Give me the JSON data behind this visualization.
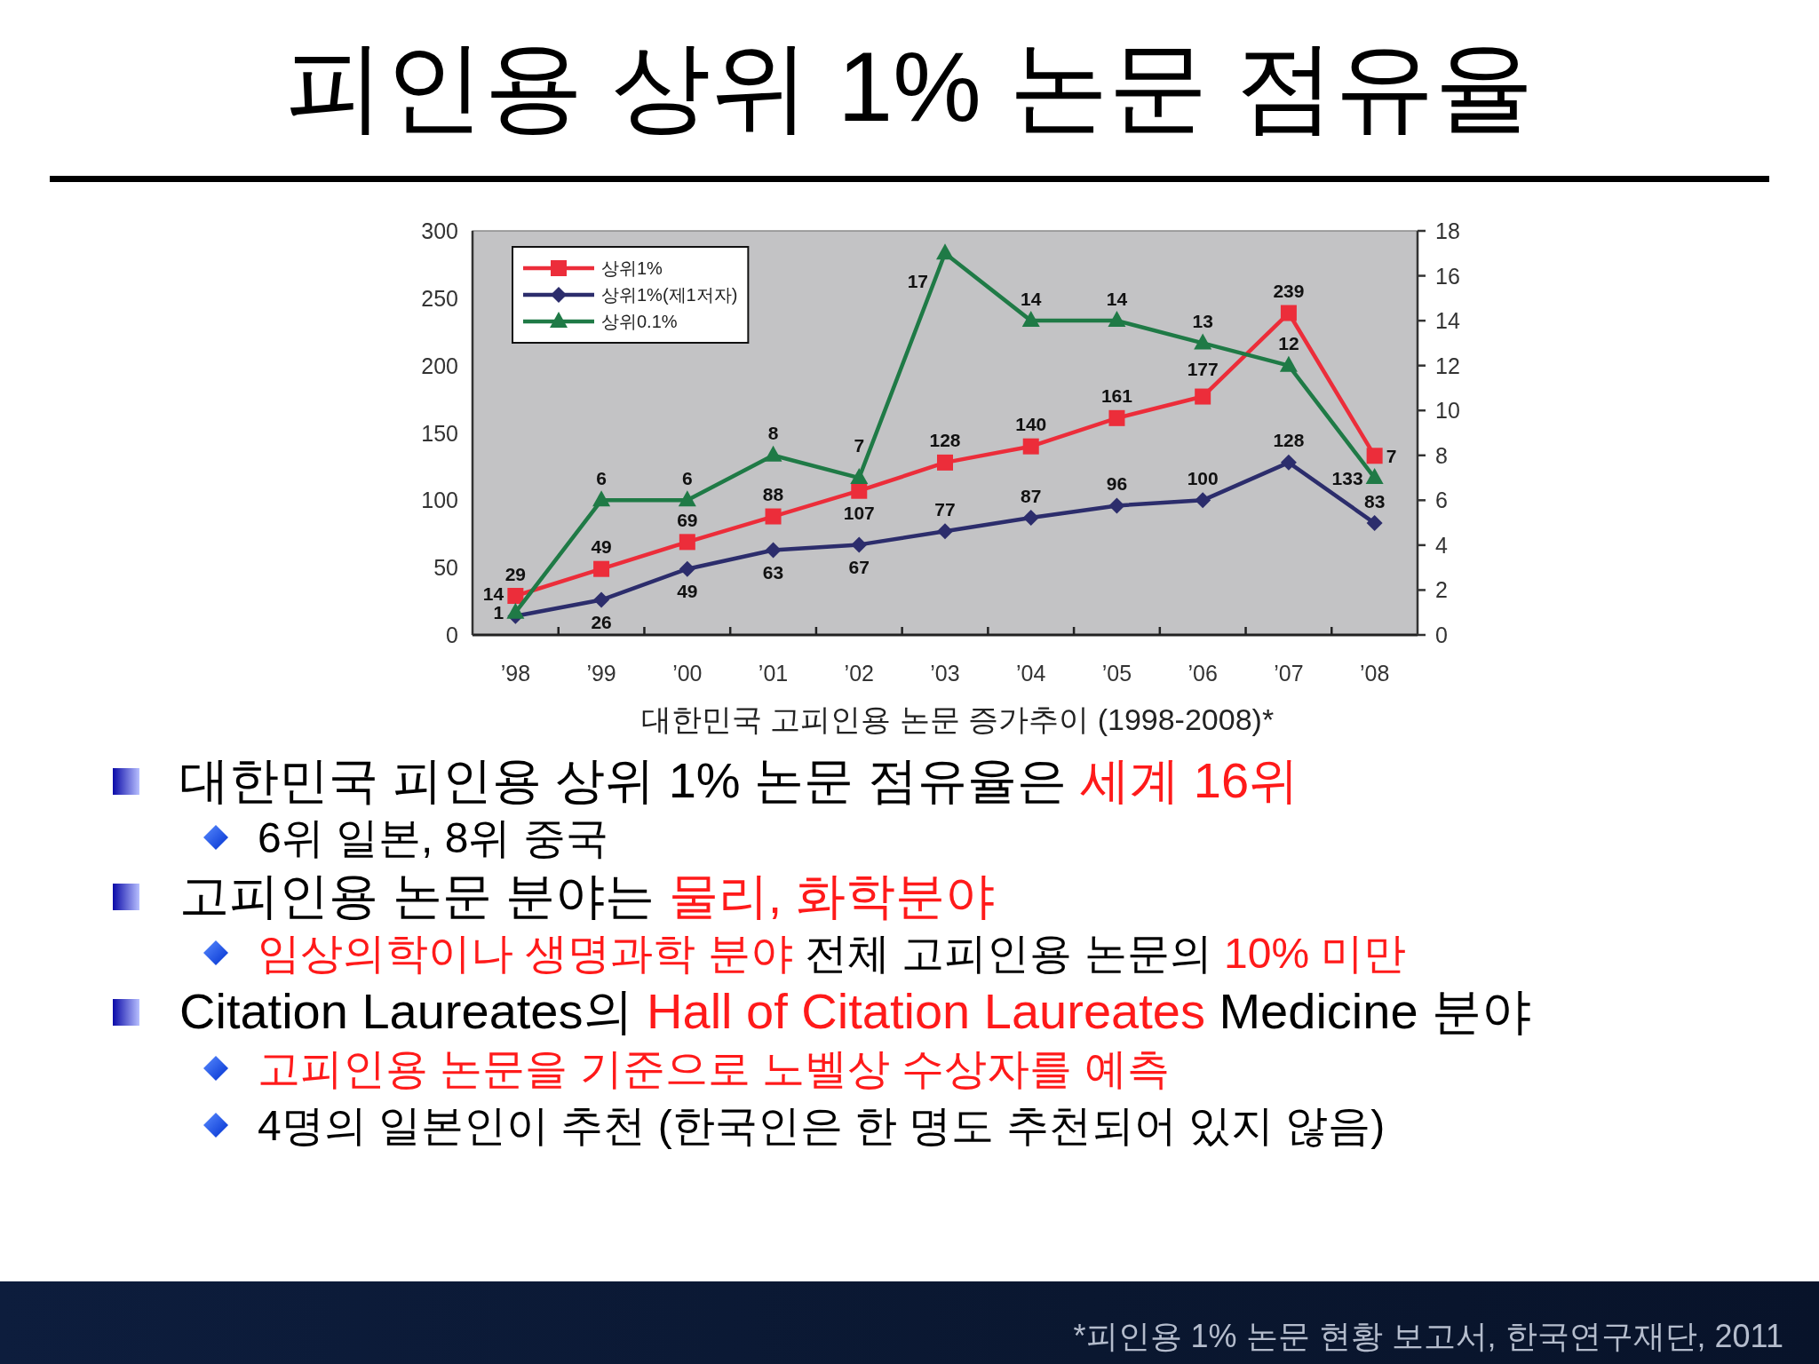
{
  "chart_data": {
    "type": "line",
    "title": "피인용 상위 1% 논문 점유율",
    "categories": [
      "’98",
      "’99",
      "’00",
      "’01",
      "’02",
      "’03",
      "’04",
      "’05",
      "’06",
      "’07",
      "’08"
    ],
    "series": [
      {
        "name": "상위1%",
        "color": "#ec2d3a",
        "marker": "square",
        "values": [
          29,
          49,
          69,
          88,
          107,
          128,
          140,
          161,
          177,
          239,
          133
        ]
      },
      {
        "name": "상위1%(제1저자)",
        "color": "#2c2d6c",
        "marker": "diamond",
        "values": [
          14,
          26,
          49,
          63,
          67,
          77,
          87,
          96,
          100,
          128,
          83
        ]
      },
      {
        "name": "상위0.1%",
        "color": "#1f7a46",
        "marker": "triangle",
        "axis": "y2",
        "values": [
          1,
          6,
          6,
          8,
          7,
          17,
          14,
          14,
          13,
          12,
          7
        ]
      }
    ],
    "ylim": [
      0,
      300
    ],
    "yticks": [
      0,
      50,
      100,
      150,
      200,
      250,
      300
    ],
    "y2lim": [
      0,
      18
    ],
    "y2ticks": [
      0,
      2,
      4,
      6,
      8,
      10,
      12,
      14,
      16,
      18
    ],
    "data_labels": true,
    "legend": "top left",
    "annotations": [
      "대한민국 고피인용 논문 증가추이 (1998-2008)*",
      "대한민국 피인용 상위 1% 논문 점유율은",
      "세계 16위",
      "6위 일본, 8위 중국",
      "고피인용 논문 분야는",
      "물리, 화학분야",
      "임상의학이나 생명과학 분야",
      "전체 고피인용 논문의",
      "10% 미만",
      "Citation Laureates의",
      "Hall of Citation Laureates",
      "Medicine 분야",
      "고피인용 논문을 기준으로 노벨상 수상자를 예측",
      "4명의 일본인이 추천 (한국인은 한 명도 추천되어 있지 않음)",
      "*피인용 1% 논문 현황 보고서, 한국연구재단, 2011"
    ]
  }
}
